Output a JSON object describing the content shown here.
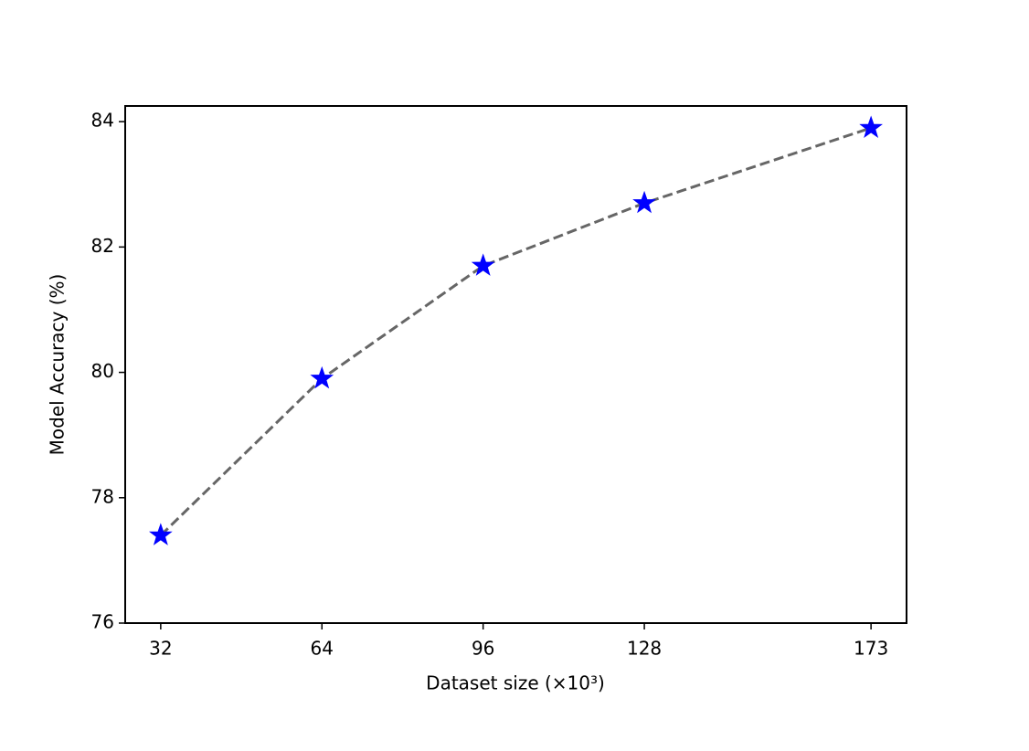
{
  "chart_data": {
    "type": "line",
    "x_label": "Dataset size (×10³)",
    "y_label": "Model Accuracy (%)",
    "x": [
      32,
      64,
      96,
      128,
      173
    ],
    "values": [
      77.4,
      79.9,
      81.7,
      82.7,
      83.9
    ],
    "line_color": "#666666",
    "line_style": "dashed",
    "marker": "star",
    "marker_color": "#0000ff",
    "xlim": [
      24.95,
      180.05
    ],
    "xticks": [
      32,
      64,
      96,
      128,
      173
    ],
    "ylim": [
      76,
      84.25
    ],
    "yticks": [
      76,
      78,
      80,
      82,
      84
    ],
    "grid": false
  }
}
